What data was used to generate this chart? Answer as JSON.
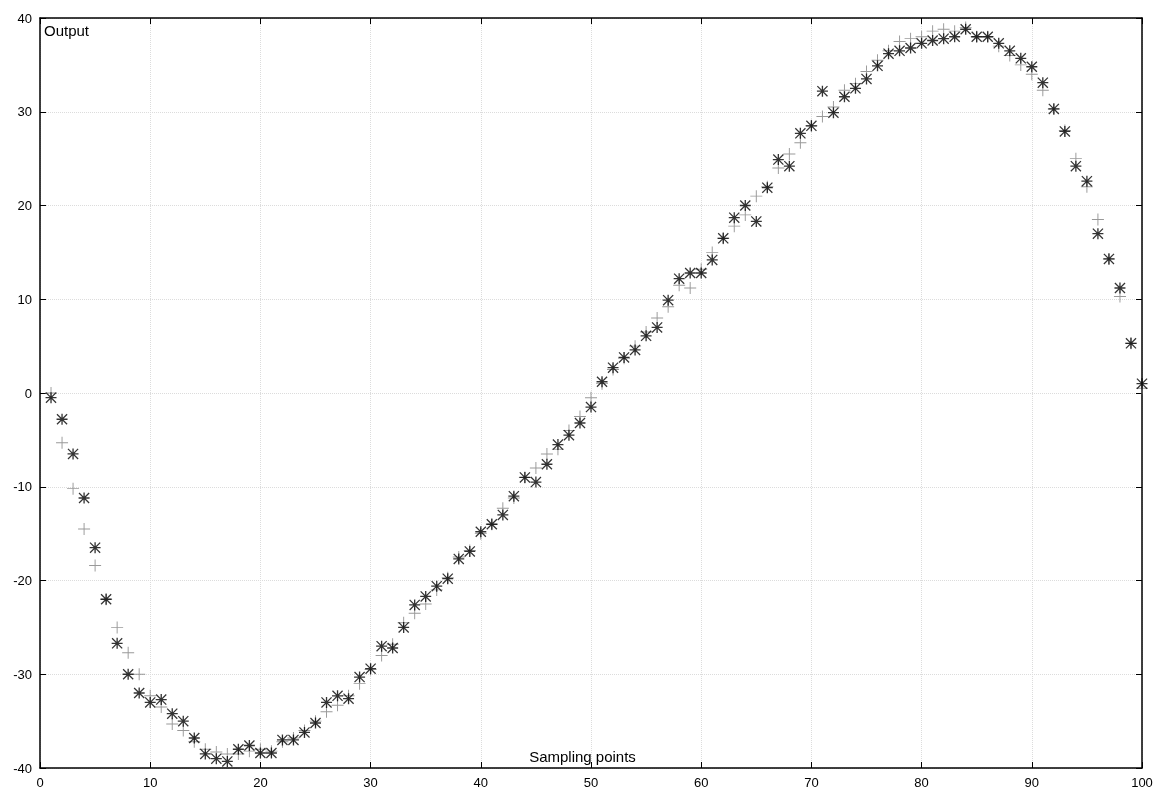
{
  "chart_data": {
    "type": "scatter",
    "xlabel": "Sampling points",
    "ylabel": "Output",
    "xlim": [
      0,
      100
    ],
    "xticks": [
      0,
      10,
      20,
      30,
      40,
      50,
      60,
      70,
      80,
      90,
      100
    ],
    "ylim": [
      -40,
      40
    ],
    "yticks": [
      -40,
      -30,
      -20,
      -10,
      0,
      10,
      20,
      30,
      40
    ],
    "grid": true,
    "x": [
      1,
      2,
      3,
      4,
      5,
      6,
      7,
      8,
      9,
      10,
      11,
      12,
      13,
      14,
      15,
      16,
      17,
      18,
      19,
      20,
      21,
      22,
      23,
      24,
      25,
      26,
      27,
      28,
      29,
      30,
      31,
      32,
      33,
      34,
      35,
      36,
      37,
      38,
      39,
      40,
      41,
      42,
      43,
      44,
      45,
      46,
      47,
      48,
      49,
      50,
      51,
      52,
      53,
      54,
      55,
      56,
      57,
      58,
      59,
      60,
      61,
      62,
      63,
      64,
      65,
      66,
      67,
      68,
      69,
      70,
      71,
      72,
      73,
      74,
      75,
      76,
      77,
      78,
      79,
      80,
      81,
      82,
      83,
      84,
      85,
      86,
      87,
      88,
      89,
      90,
      91,
      92,
      93,
      94,
      95,
      96,
      97,
      98,
      99,
      100
    ],
    "series": [
      {
        "color": "#808080",
        "marker": "cross",
        "values": [
          0,
          -5.3,
          -10.2,
          -14.5,
          -18.4,
          -22,
          -25,
          -27.7,
          -30,
          -32.3,
          -33.5,
          -35.3,
          -36,
          -37.2,
          -38,
          -38.3,
          -38.5,
          -38.5,
          -38.2,
          -38,
          -38.2,
          -37.2,
          -36.8,
          -36,
          -35,
          -34,
          -33.3,
          -32.3,
          -31,
          -29.5,
          -28,
          -26.8,
          -24.5,
          -23.5,
          -22.5,
          -21,
          -19.7,
          -17.5,
          -16.8,
          -15,
          -14,
          -12.3,
          -11.2,
          -9,
          -8,
          -6.5,
          -6,
          -4,
          -2.5,
          -0.5,
          1,
          2.5,
          3.7,
          5,
          6.5,
          8,
          9.2,
          11.5,
          11.2,
          13.2,
          15,
          16.5,
          17.8,
          19,
          21,
          22,
          24,
          25.5,
          26.7,
          28.5,
          29.5,
          30.5,
          32.3,
          33,
          34.3,
          35.5,
          36.5,
          37.5,
          37.8,
          38,
          38.6,
          38.8,
          38.6,
          39,
          38,
          38,
          37,
          36,
          35,
          34,
          32.3,
          30.3,
          28,
          25,
          22,
          18.5,
          14.3,
          10.3,
          5.3,
          0.5
        ]
      },
      {
        "color": "#000000",
        "marker": "star",
        "values": [
          -0.5,
          -2.8,
          -6.5,
          -11.2,
          -16.5,
          -22,
          -26.7,
          -30,
          -32,
          -33,
          -32.7,
          -34.2,
          -35,
          -36.8,
          -38.5,
          -39,
          -39.3,
          -38,
          -37.6,
          -38.4,
          -38.4,
          -37,
          -37,
          -36.2,
          -35.2,
          -33,
          -32.3,
          -32.6,
          -30.3,
          -29.4,
          -27,
          -27.2,
          -25,
          -22.6,
          -21.7,
          -20.6,
          -19.8,
          -17.7,
          -16.9,
          -14.8,
          -14,
          -13,
          -11,
          -9,
          -9.5,
          -7.6,
          -5.5,
          -4.5,
          -3.2,
          -1.5,
          1.2,
          2.7,
          3.8,
          4.6,
          6.1,
          7,
          9.9,
          12.2,
          12.8,
          12.8,
          14.2,
          16.5,
          18.7,
          20,
          18.3,
          21.9,
          24.9,
          24.2,
          27.7,
          28.5,
          32.2,
          29.9,
          31.6,
          32.5,
          33.5,
          34.9,
          36.2,
          36.5,
          36.8,
          37.3,
          37.6,
          37.8,
          38,
          38.8,
          38,
          38,
          37.3,
          36.5,
          35.7,
          34.8,
          33.1,
          30.3,
          27.9,
          24.2,
          22.6,
          17,
          14.3,
          11.2,
          5.3,
          1.0
        ]
      }
    ]
  }
}
